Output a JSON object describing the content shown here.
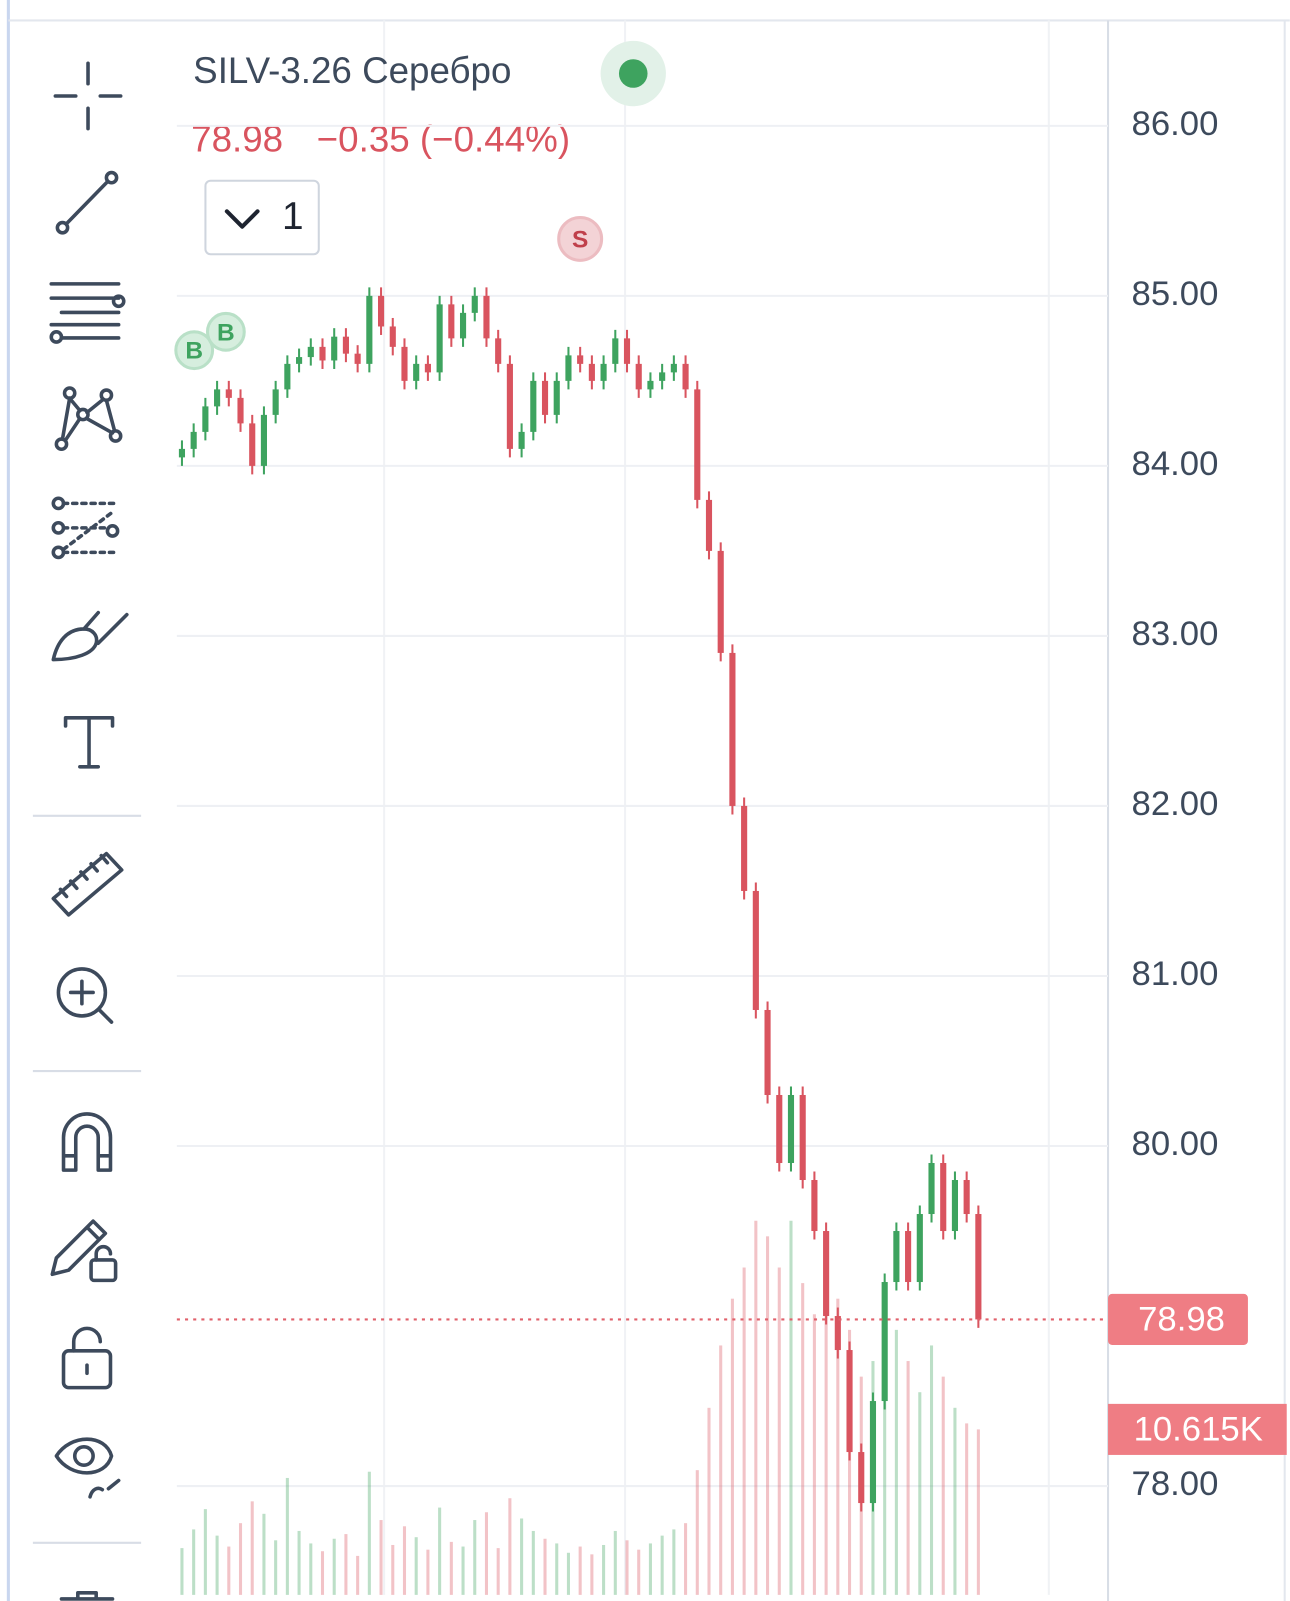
{
  "chart_data": {
    "type": "candlestick",
    "title": "SILV-3.26 Серебро",
    "last_price": 78.98,
    "change_label": "−0.35 (−0.44%)",
    "interval": "1",
    "markers": [
      "B",
      "B",
      "S"
    ],
    "last_volume": 10615,
    "last_volume_label": "10.615K",
    "up_color": "#3ea35f",
    "down_color": "#d9545f",
    "grid": true,
    "ylim": [
      77.36,
      86.62
    ],
    "yticks": [
      {
        "value": 78,
        "label": "78.00"
      },
      {
        "value": 80,
        "label": "80.00"
      },
      {
        "value": 81,
        "label": "81.00"
      },
      {
        "value": 82,
        "label": "82.00"
      },
      {
        "value": 83,
        "label": "83.00"
      },
      {
        "value": 84,
        "label": "84.00"
      },
      {
        "value": 85,
        "label": "85.00"
      },
      {
        "value": 86,
        "label": "86.00"
      }
    ],
    "y2lim": [
      0,
      101000
    ],
    "open": [
      84.05,
      84.1,
      84.2,
      84.35,
      84.45,
      84.4,
      84.25,
      84.0,
      84.3,
      84.45,
      84.6,
      84.64,
      84.7,
      84.62,
      84.76,
      84.66,
      84.6,
      85.0,
      84.82,
      84.7,
      84.5,
      84.6,
      84.55,
      84.95,
      84.75,
      84.9,
      85.0,
      84.75,
      84.6,
      84.1,
      84.2,
      84.5,
      84.3,
      84.5,
      84.65,
      84.6,
      84.5,
      84.6,
      84.75,
      84.6,
      84.45,
      84.5,
      84.55,
      84.6,
      84.45,
      83.8,
      83.5,
      82.9,
      82.0,
      81.5,
      80.8,
      80.3,
      79.9,
      80.3,
      79.8,
      79.5,
      79.0,
      78.8,
      78.2,
      77.9,
      78.5,
      79.2,
      79.5,
      79.2,
      79.6,
      79.9,
      79.5,
      79.8,
      79.6
    ],
    "high": [
      84.15,
      84.25,
      84.4,
      84.5,
      84.5,
      84.45,
      84.3,
      84.35,
      84.5,
      84.65,
      84.69,
      84.75,
      84.75,
      84.81,
      84.81,
      84.71,
      85.05,
      85.05,
      84.87,
      84.75,
      84.65,
      84.65,
      85.0,
      85.0,
      84.95,
      85.05,
      85.05,
      84.8,
      84.65,
      84.25,
      84.55,
      84.55,
      84.55,
      84.7,
      84.7,
      84.65,
      84.65,
      84.8,
      84.8,
      84.65,
      84.55,
      84.6,
      84.65,
      84.65,
      84.5,
      83.85,
      83.55,
      82.95,
      82.05,
      81.55,
      80.85,
      80.35,
      80.35,
      80.35,
      79.85,
      79.55,
      79.05,
      78.85,
      78.25,
      78.55,
      79.25,
      79.55,
      79.55,
      79.65,
      79.95,
      79.95,
      79.85,
      79.85,
      79.65
    ],
    "low": [
      84.0,
      84.05,
      84.15,
      84.3,
      84.35,
      84.2,
      83.95,
      83.95,
      84.25,
      84.4,
      84.55,
      84.59,
      84.57,
      84.57,
      84.61,
      84.55,
      84.55,
      84.77,
      84.65,
      84.45,
      84.45,
      84.5,
      84.5,
      84.7,
      84.7,
      84.85,
      84.7,
      84.55,
      84.05,
      84.05,
      84.15,
      84.25,
      84.25,
      84.45,
      84.55,
      84.45,
      84.45,
      84.55,
      84.55,
      84.4,
      84.4,
      84.45,
      84.5,
      84.4,
      83.75,
      83.45,
      82.85,
      81.95,
      81.45,
      80.75,
      80.25,
      79.85,
      79.85,
      79.75,
      79.45,
      78.95,
      78.75,
      78.15,
      77.85,
      77.85,
      78.45,
      79.15,
      79.15,
      79.15,
      79.55,
      79.45,
      79.45,
      79.55,
      78.93
    ],
    "close": [
      84.1,
      84.2,
      84.35,
      84.45,
      84.4,
      84.25,
      84.0,
      84.3,
      84.45,
      84.6,
      84.64,
      84.7,
      84.62,
      84.76,
      84.66,
      84.6,
      85.0,
      84.82,
      84.7,
      84.5,
      84.6,
      84.55,
      84.95,
      84.75,
      84.9,
      85.0,
      84.75,
      84.6,
      84.1,
      84.2,
      84.5,
      84.3,
      84.5,
      84.65,
      84.6,
      84.5,
      84.6,
      84.75,
      84.6,
      84.45,
      84.5,
      84.55,
      84.6,
      84.45,
      83.8,
      83.5,
      82.9,
      82.0,
      81.5,
      80.8,
      80.3,
      79.9,
      80.3,
      79.8,
      79.5,
      79.0,
      78.8,
      78.2,
      77.9,
      78.5,
      79.2,
      79.5,
      79.2,
      79.6,
      79.9,
      79.5,
      79.8,
      79.6,
      78.98
    ],
    "volume": [
      3000,
      4200,
      5500,
      3800,
      3100,
      4600,
      6000,
      5200,
      3500,
      7500,
      4100,
      3300,
      2800,
      3600,
      3900,
      2500,
      7900,
      4800,
      3200,
      4400,
      3700,
      2900,
      5600,
      3400,
      3100,
      4800,
      5300,
      3000,
      6200,
      4900,
      4100,
      3600,
      3300,
      2700,
      3100,
      2600,
      3200,
      4100,
      3500,
      2900,
      3300,
      3800,
      4200,
      4600,
      8000,
      12000,
      16000,
      19000,
      21000,
      24000,
      23000,
      21000,
      24000,
      20000,
      18000,
      22000,
      19000,
      17000,
      14000,
      15000,
      16000,
      17000,
      15000,
      13000,
      16000,
      14000,
      12000,
      11000,
      10615
    ]
  }
}
